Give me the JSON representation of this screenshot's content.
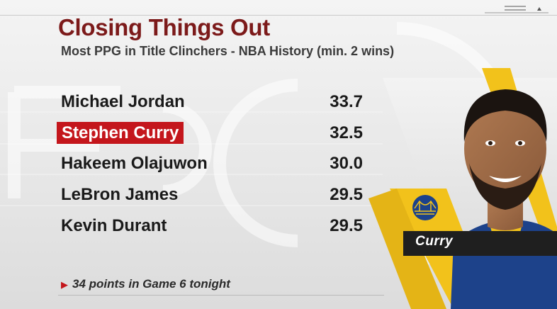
{
  "graphic": {
    "title": "Closing Things Out",
    "subtitle": "Most PPG in Title Clinchers - NBA History (min. 2 wins)",
    "rows": [
      {
        "name": "Michael Jordan",
        "value": "33.7",
        "highlighted": false
      },
      {
        "name": "Stephen Curry",
        "value": "32.5",
        "highlighted": true
      },
      {
        "name": "Hakeem Olajuwon",
        "value": "30.0",
        "highlighted": false
      },
      {
        "name": "LeBron James",
        "value": "29.5",
        "highlighted": false
      },
      {
        "name": "Kevin Durant",
        "value": "29.5",
        "highlighted": false
      }
    ],
    "footnote": "34 points in Game 6 tonight",
    "player_label": "Curry"
  },
  "colors": {
    "title": "#7c1a1a",
    "highlight": "#c4161c",
    "accent_yellow": "#f2c21b",
    "plate": "#1f1f1f",
    "team_blue": "#1d428a"
  },
  "icons": {
    "menu": "menu-lines-icon",
    "footnote_marker": "triangle-right-icon",
    "team_logo": "bridge-logo-icon"
  }
}
